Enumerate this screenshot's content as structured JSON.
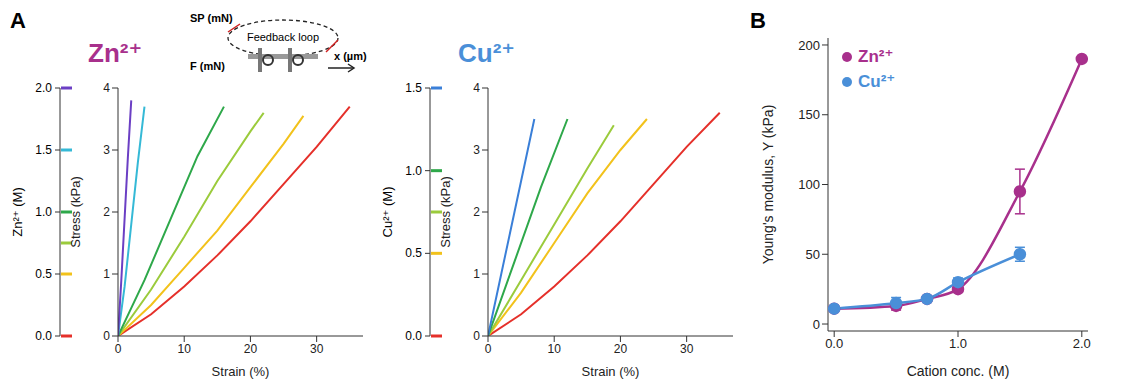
{
  "chart_data": [
    {
      "type": "line",
      "panel": "A",
      "title": "Zn²⁺",
      "color": "#a8308c",
      "xlabel": "Strain (%)",
      "ylabel": "Stress (kPa)",
      "zlabel": "Zn²⁺ (M)",
      "annotations": [
        "SP (mN)",
        "Feedback loop",
        "F (mN)",
        "x (µm)"
      ],
      "xlim": [
        0,
        37
      ],
      "xticks": [
        0,
        10,
        20,
        30
      ],
      "ylim": [
        0,
        4
      ],
      "yticks": [
        0,
        1,
        2,
        3,
        4
      ],
      "zlim": [
        0,
        2
      ],
      "zticks": [
        {
          "value": 0,
          "label": "0.0"
        },
        {
          "value": 0.5,
          "label": "0.5"
        },
        {
          "value": 1,
          "label": "1.0"
        },
        {
          "value": 1.5,
          "label": "1.5"
        },
        {
          "value": 2,
          "label": "2.0"
        }
      ],
      "grid": false,
      "series": [
        {
          "z": 0,
          "color": "#e5302a",
          "x": [
            0,
            5,
            10,
            15,
            20,
            25,
            30,
            35
          ],
          "values": [
            0,
            0.35,
            0.8,
            1.3,
            1.85,
            2.45,
            3.05,
            3.7
          ]
        },
        {
          "z": 0.5,
          "color": "#f2c21b",
          "x": [
            0,
            5,
            10,
            15,
            20,
            25,
            28
          ],
          "values": [
            0,
            0.5,
            1.1,
            1.7,
            2.4,
            3.1,
            3.55
          ]
        },
        {
          "z": 0.75,
          "color": "#9bcb3c",
          "x": [
            0,
            5,
            10,
            15,
            20,
            22
          ],
          "values": [
            0,
            0.75,
            1.6,
            2.5,
            3.3,
            3.6
          ]
        },
        {
          "z": 1.0,
          "color": "#2ea84a",
          "x": [
            0,
            4,
            8,
            12,
            16
          ],
          "values": [
            0,
            0.9,
            1.9,
            2.9,
            3.7
          ]
        },
        {
          "z": 1.5,
          "color": "#35b9d6",
          "x": [
            0,
            1,
            2,
            3,
            4
          ],
          "values": [
            0,
            0.8,
            1.8,
            2.8,
            3.7
          ]
        },
        {
          "z": 2.0,
          "color": "#6b3fc4",
          "x": [
            0,
            0.5,
            1,
            1.5,
            2
          ],
          "values": [
            0,
            0.9,
            1.9,
            2.9,
            3.8
          ]
        }
      ]
    },
    {
      "type": "line",
      "title": "Cu²⁺",
      "color": "#4a8fd8",
      "xlabel": "Strain (%)",
      "ylabel": "Stress (kPa)",
      "zlabel": "Cu²⁺ (M)",
      "xlim": [
        0,
        37
      ],
      "xticks": [
        0,
        10,
        20,
        30
      ],
      "ylim": [
        0,
        4
      ],
      "yticks": [
        0,
        1,
        2,
        3,
        4
      ],
      "zlim": [
        0,
        1.5
      ],
      "zticks": [
        {
          "value": 0,
          "label": "0.0"
        },
        {
          "value": 0.5,
          "label": "0.5"
        },
        {
          "value": 1,
          "label": "1.0"
        },
        {
          "value": 1.5,
          "label": "1.5"
        }
      ],
      "grid": false,
      "series": [
        {
          "z": 0,
          "color": "#e5302a",
          "x": [
            0,
            5,
            10,
            15,
            20,
            25,
            30,
            35
          ],
          "values": [
            0,
            0.35,
            0.8,
            1.3,
            1.85,
            2.45,
            3.05,
            3.6
          ]
        },
        {
          "z": 0.5,
          "color": "#f2c21b",
          "x": [
            0,
            5,
            10,
            15,
            20,
            24
          ],
          "values": [
            0,
            0.7,
            1.5,
            2.3,
            3.0,
            3.5
          ]
        },
        {
          "z": 0.75,
          "color": "#9bcb3c",
          "x": [
            0,
            5,
            10,
            15,
            19
          ],
          "values": [
            0,
            0.9,
            1.8,
            2.7,
            3.4
          ]
        },
        {
          "z": 1.0,
          "color": "#2ea84a",
          "x": [
            0,
            4,
            8,
            12
          ],
          "values": [
            0,
            1.2,
            2.4,
            3.5
          ]
        },
        {
          "z": 1.5,
          "color": "#3a7fd8",
          "x": [
            0,
            2,
            4,
            6,
            7
          ],
          "values": [
            0,
            1.0,
            2.0,
            3.0,
            3.5
          ]
        }
      ]
    },
    {
      "type": "line",
      "panel": "B",
      "xlabel": "Cation conc. (M)",
      "ylabel": "Young's modulus, Y (kPa)",
      "xlim": [
        -0.05,
        2.05
      ],
      "xticks": [
        {
          "value": 0,
          "label": "0.0"
        },
        {
          "value": 1,
          "label": "1.0"
        },
        {
          "value": 2,
          "label": "2.0"
        }
      ],
      "ylim": [
        -5,
        205
      ],
      "yticks": [
        0,
        50,
        100,
        150,
        200
      ],
      "grid": false,
      "legend": "top-left",
      "series": [
        {
          "name": "Zn²⁺",
          "color": "#a8308c",
          "marker": "circle",
          "x": [
            0,
            0.5,
            0.75,
            1.0,
            1.5,
            2.0
          ],
          "values": [
            11,
            13,
            18,
            25,
            95,
            190
          ],
          "error": [
            1,
            3,
            1,
            2,
            16,
            0
          ]
        },
        {
          "name": "Cu²⁺",
          "color": "#4a8fd8",
          "marker": "circle",
          "x": [
            0,
            0.5,
            0.75,
            1.0,
            1.5
          ],
          "values": [
            11,
            15,
            18,
            30,
            50
          ],
          "error": [
            1,
            4,
            1,
            3,
            5
          ]
        }
      ]
    }
  ]
}
